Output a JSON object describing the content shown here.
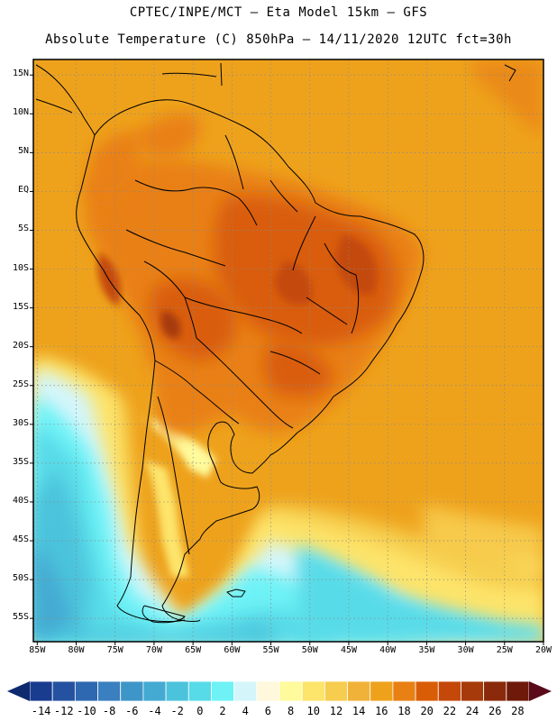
{
  "header": {
    "line1": "CPTEC/INPE/MCT –  Eta Model 15km – GFS",
    "line2": "Absolute Temperature (C) 850hPa – 14/11/2020 12UTC fct=30h"
  },
  "axes": {
    "lat_labels": [
      "15N",
      "10N",
      "5N",
      "EQ",
      "5S",
      "10S",
      "15S",
      "20S",
      "25S",
      "30S",
      "35S",
      "40S",
      "45S",
      "50S",
      "55S"
    ],
    "lat_values": [
      15,
      10,
      5,
      0,
      -5,
      -10,
      -15,
      -20,
      -25,
      -30,
      -35,
      -40,
      -45,
      -50,
      -55
    ],
    "lon_labels": [
      "85W",
      "80W",
      "75W",
      "70W",
      "65W",
      "60W",
      "55W",
      "50W",
      "45W",
      "40W",
      "35W",
      "30W",
      "25W",
      "20W"
    ],
    "lon_values": [
      -85,
      -80,
      -75,
      -70,
      -65,
      -60,
      -55,
      -50,
      -45,
      -40,
      -35,
      -30,
      -25,
      -20
    ],
    "lat_range": [
      -58,
      17
    ],
    "lon_range": [
      -85.5,
      -20
    ]
  },
  "colorbar": {
    "labels": [
      "-14",
      "-12",
      "-10",
      "-8",
      "-6",
      "-4",
      "-2",
      "0",
      "2",
      "4",
      "6",
      "8",
      "10",
      "12",
      "14",
      "16",
      "18",
      "20",
      "22",
      "24",
      "26",
      "28"
    ],
    "colors": [
      "#1a3c8f",
      "#2452a0",
      "#2e68b0",
      "#3a7fc0",
      "#3e96c8",
      "#44aad2",
      "#4cc3dc",
      "#58dbe8",
      "#6ef2f6",
      "#d4f6fb",
      "#fff8dc",
      "#fffa9c",
      "#fde46a",
      "#f6cd4e",
      "#f1b23a",
      "#eea21c",
      "#e98013",
      "#d95d07",
      "#c4480a",
      "#a63a0a",
      "#8a2a0a",
      "#6e1a0a"
    ]
  }
}
